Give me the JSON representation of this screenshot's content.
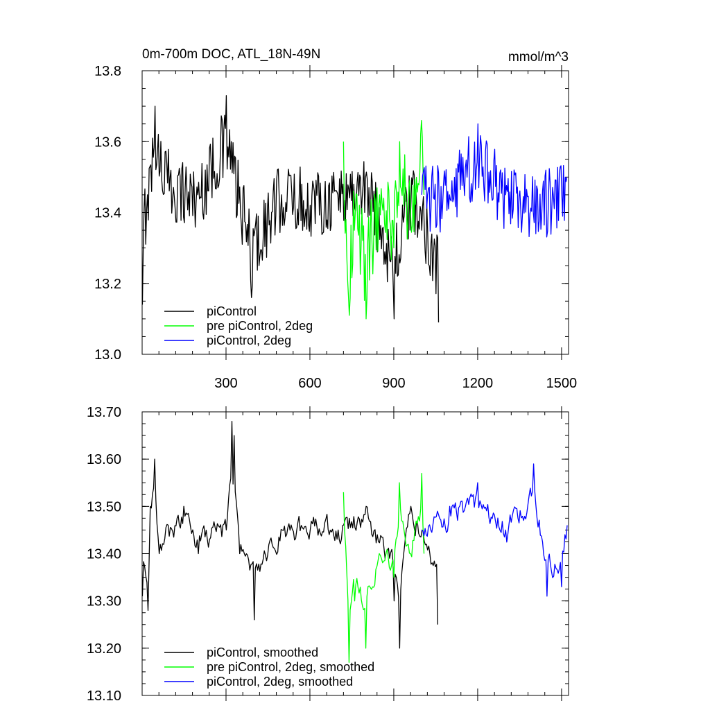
{
  "chart_data": [
    {
      "type": "line",
      "title": "0m-700m DOC, ATL_18N-49N",
      "units": "mmol/m^3",
      "xlim": [
        0,
        1525
      ],
      "ylim": [
        13.0,
        13.8
      ],
      "x_ticks": [
        300,
        600,
        900,
        1200,
        1500
      ],
      "x_tick_labels": [
        "300",
        "600",
        "900",
        "1200",
        "1500"
      ],
      "y_ticks": [
        13.0,
        13.2,
        13.4,
        13.6,
        13.8
      ],
      "y_tick_labels": [
        "13.0",
        "13.2",
        "13.4",
        "13.6",
        "13.8"
      ],
      "grid": false,
      "legend_position": "bottom-left",
      "series": [
        {
          "name": "piControl",
          "color": "#000000",
          "x_start": 1,
          "x_end": 1060,
          "mean": 13.44,
          "amplitude": 0.1,
          "keypoints": [
            [
              1,
              13.14
            ],
            [
              5,
              13.3
            ],
            [
              20,
              13.45
            ],
            [
              45,
              13.7
            ],
            [
              100,
              13.5
            ],
            [
              200,
              13.45
            ],
            [
              300,
              13.73
            ],
            [
              320,
              13.6
            ],
            [
              390,
              13.16
            ],
            [
              500,
              13.45
            ],
            [
              600,
              13.42
            ],
            [
              700,
              13.45
            ],
            [
              800,
              13.5
            ],
            [
              900,
              13.1
            ],
            [
              960,
              13.42
            ],
            [
              1000,
              13.35
            ],
            [
              1060,
              13.09
            ]
          ]
        },
        {
          "name": "pre piControl, 2deg",
          "color": "#00ff00",
          "x_start": 720,
          "x_end": 1010,
          "mean": 13.42,
          "amplitude": 0.12,
          "keypoints": [
            [
              720,
              13.6
            ],
            [
              740,
              13.11
            ],
            [
              760,
              13.35
            ],
            [
              800,
              13.1
            ],
            [
              850,
              13.45
            ],
            [
              900,
              13.3
            ],
            [
              920,
              13.6
            ],
            [
              960,
              13.4
            ],
            [
              1000,
              13.66
            ],
            [
              1010,
              13.45
            ]
          ]
        },
        {
          "name": "piControl, 2deg",
          "color": "#0000ff",
          "x_start": 1000,
          "x_end": 1520,
          "mean": 13.43,
          "amplitude": 0.1,
          "keypoints": [
            [
              1000,
              13.45
            ],
            [
              1100,
              13.45
            ],
            [
              1200,
              13.65
            ],
            [
              1300,
              13.45
            ],
            [
              1400,
              13.4
            ],
            [
              1500,
              13.45
            ],
            [
              1520,
              13.5
            ]
          ]
        }
      ]
    },
    {
      "type": "line",
      "xlim": [
        0,
        1525
      ],
      "ylim": [
        13.1,
        13.7
      ],
      "x_ticks": [
        300,
        600,
        900,
        1200,
        1500
      ],
      "y_ticks": [
        13.1,
        13.2,
        13.3,
        13.4,
        13.5,
        13.6,
        13.7
      ],
      "y_tick_labels": [
        "13.10",
        "13.20",
        "13.30",
        "13.40",
        "13.50",
        "13.60",
        "13.70"
      ],
      "grid": false,
      "legend_position": "bottom-left",
      "series": [
        {
          "name": "piControl, smoothed",
          "color": "#000000",
          "x_start": 1,
          "x_end": 1060,
          "mean": 13.45,
          "amplitude": 0.05,
          "keypoints": [
            [
              1,
              13.31
            ],
            [
              20,
              13.28
            ],
            [
              30,
              13.5
            ],
            [
              45,
              13.6
            ],
            [
              60,
              13.4
            ],
            [
              150,
              13.5
            ],
            [
              200,
              13.4
            ],
            [
              300,
              13.45
            ],
            [
              320,
              13.68
            ],
            [
              330,
              13.65
            ],
            [
              350,
              13.4
            ],
            [
              400,
              13.26
            ],
            [
              500,
              13.45
            ],
            [
              600,
              13.45
            ],
            [
              700,
              13.45
            ],
            [
              800,
              13.5
            ],
            [
              900,
              13.3
            ],
            [
              920,
              13.2
            ],
            [
              960,
              13.5
            ],
            [
              1000,
              13.45
            ],
            [
              1060,
              13.25
            ]
          ]
        },
        {
          "name": "pre piControl, 2deg, smoothed",
          "color": "#00ff00",
          "x_start": 720,
          "x_end": 1010,
          "mean": 13.4,
          "amplitude": 0.05,
          "keypoints": [
            [
              720,
              13.53
            ],
            [
              740,
              13.17
            ],
            [
              760,
              13.3
            ],
            [
              800,
              13.2
            ],
            [
              850,
              13.4
            ],
            [
              900,
              13.35
            ],
            [
              920,
              13.55
            ],
            [
              960,
              13.4
            ],
            [
              1000,
              13.57
            ],
            [
              1010,
              13.4
            ]
          ]
        },
        {
          "name": "piControl, 2deg, smoothed",
          "color": "#0000ff",
          "x_start": 1000,
          "x_end": 1520,
          "mean": 13.45,
          "amplitude": 0.05,
          "keypoints": [
            [
              1000,
              13.45
            ],
            [
              1100,
              13.5
            ],
            [
              1200,
              13.55
            ],
            [
              1300,
              13.45
            ],
            [
              1400,
              13.59
            ],
            [
              1450,
              13.31
            ],
            [
              1500,
              13.33
            ],
            [
              1520,
              13.46
            ]
          ]
        }
      ]
    }
  ]
}
